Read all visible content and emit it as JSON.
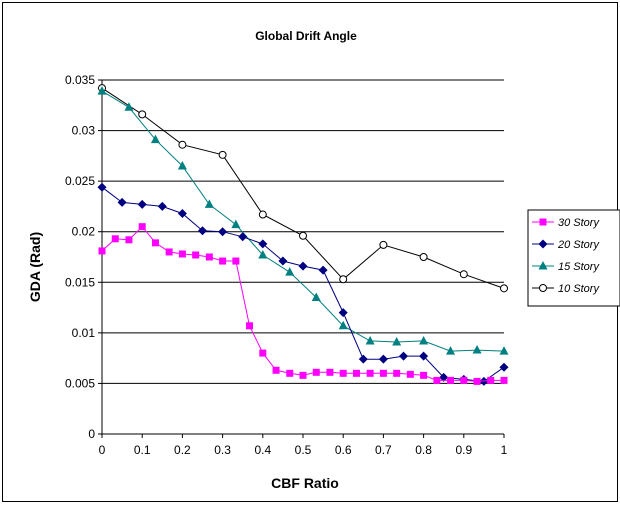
{
  "chart_data": {
    "type": "line",
    "title": "Global Drift Angle",
    "xlabel": "CBF Ratio",
    "ylabel": "GDA (Rad)",
    "xlim": [
      0,
      1
    ],
    "ylim": [
      0,
      0.035
    ],
    "x_ticks": [
      "0",
      "0.1",
      "0.2",
      "0.3",
      "0.4",
      "0.5",
      "0.6",
      "0.7",
      "0.8",
      "0.9",
      "1"
    ],
    "y_ticks": [
      "0",
      "0.005",
      "0.01",
      "0.015",
      "0.02",
      "0.025",
      "0.03",
      "0.035"
    ],
    "grid": "horizontal",
    "legend_position": "right",
    "series": [
      {
        "name": "30 Story",
        "color": "#ff00ff",
        "marker": "square",
        "x": [
          0,
          0.033,
          0.067,
          0.1,
          0.133,
          0.167,
          0.2,
          0.233,
          0.267,
          0.3,
          0.333,
          0.367,
          0.4,
          0.433,
          0.467,
          0.5,
          0.533,
          0.567,
          0.6,
          0.633,
          0.667,
          0.7,
          0.733,
          0.767,
          0.8,
          0.833,
          0.867,
          0.9,
          0.933,
          0.967,
          1.0
        ],
        "y": [
          0.0181,
          0.0193,
          0.0192,
          0.0205,
          0.0189,
          0.018,
          0.0178,
          0.0177,
          0.0175,
          0.0171,
          0.0171,
          0.0107,
          0.008,
          0.0063,
          0.006,
          0.0058,
          0.0061,
          0.0061,
          0.006,
          0.006,
          0.006,
          0.006,
          0.006,
          0.0059,
          0.0058,
          0.0053,
          0.0053,
          0.0053,
          0.0052,
          0.0053,
          0.0053
        ]
      },
      {
        "name": "20 Story",
        "color": "#000080",
        "marker": "diamond",
        "x": [
          0,
          0.05,
          0.1,
          0.15,
          0.2,
          0.25,
          0.3,
          0.35,
          0.4,
          0.45,
          0.5,
          0.55,
          0.6,
          0.65,
          0.7,
          0.75,
          0.8,
          0.85,
          0.9,
          0.95,
          1.0
        ],
        "y": [
          0.0244,
          0.0229,
          0.0227,
          0.0225,
          0.0218,
          0.0201,
          0.02,
          0.0195,
          0.0188,
          0.0171,
          0.0166,
          0.0162,
          0.012,
          0.0074,
          0.0074,
          0.0077,
          0.0077,
          0.0056,
          0.0054,
          0.0052,
          0.0066
        ]
      },
      {
        "name": "15 Story",
        "color": "#008080",
        "marker": "triangle",
        "x": [
          0,
          0.067,
          0.133,
          0.2,
          0.267,
          0.333,
          0.4,
          0.467,
          0.533,
          0.6,
          0.667,
          0.733,
          0.8,
          0.867,
          0.933,
          1.0
        ],
        "y": [
          0.0339,
          0.0323,
          0.0291,
          0.0265,
          0.0227,
          0.0207,
          0.0177,
          0.016,
          0.0135,
          0.0107,
          0.0092,
          0.0091,
          0.0092,
          0.0082,
          0.0083,
          0.0082
        ]
      },
      {
        "name": "10 Story",
        "color": "#000000",
        "marker": "circle",
        "x": [
          0,
          0.1,
          0.2,
          0.3,
          0.4,
          0.5,
          0.6,
          0.7,
          0.8,
          0.9,
          1.0
        ],
        "y": [
          0.0342,
          0.0316,
          0.0286,
          0.0276,
          0.0217,
          0.0196,
          0.0153,
          0.0187,
          0.0175,
          0.0158,
          0.0144
        ]
      }
    ]
  }
}
